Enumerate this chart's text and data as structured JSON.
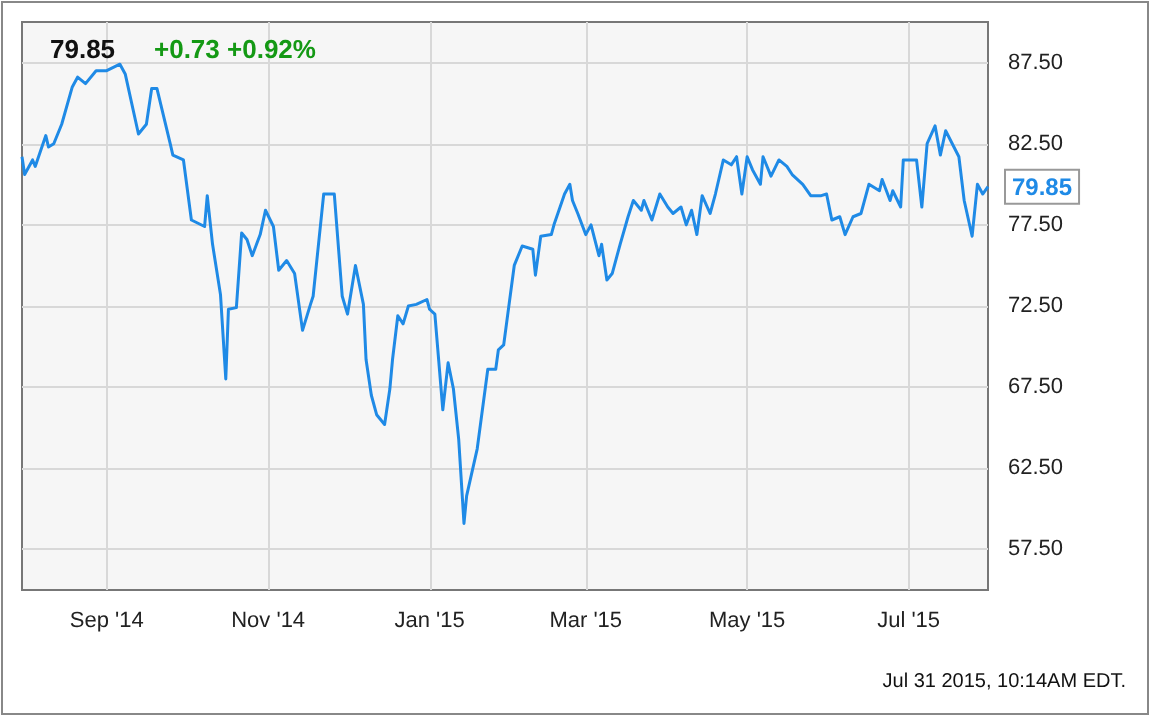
{
  "chart_data": {
    "type": "line",
    "title": "79.85",
    "subtitle": "+0.73 +0.92%",
    "annotations": [
      {
        "text": "79.85",
        "x": "2015-07-31",
        "y": 79.85
      },
      "Jul 31 2015, 10:14AM EDT."
    ],
    "x": [
      "2014-07-31",
      "2014-08-01",
      "2014-08-04",
      "2014-08-05",
      "2014-08-09",
      "2014-08-10",
      "2014-08-12",
      "2014-08-15",
      "2014-08-19",
      "2014-08-21",
      "2014-08-24",
      "2014-08-28",
      "2014-09-01",
      "2014-09-06",
      "2014-09-08",
      "2014-09-13",
      "2014-09-16",
      "2014-09-18",
      "2014-09-20",
      "2014-09-25",
      "2014-09-26",
      "2014-09-30",
      "2014-10-03",
      "2014-10-08",
      "2014-10-09",
      "2014-10-11",
      "2014-10-14",
      "2014-10-16",
      "2014-10-17",
      "2014-10-20",
      "2014-10-22",
      "2014-10-24",
      "2014-10-26",
      "2014-10-29",
      "2014-10-31",
      "2014-11-03",
      "2014-11-05",
      "2014-11-08",
      "2014-11-11",
      "2014-11-14",
      "2014-11-17",
      "2014-11-18",
      "2014-11-22",
      "2014-11-26",
      "2014-11-29",
      "2014-12-01",
      "2014-12-04",
      "2014-12-07",
      "2014-12-08",
      "2014-12-10",
      "2014-12-12",
      "2014-12-15",
      "2014-12-17",
      "2014-12-18",
      "2014-12-20",
      "2014-12-22",
      "2014-12-24",
      "2014-12-27",
      "2014-12-31",
      "2015-01-01",
      "2015-01-03",
      "2015-01-06",
      "2015-01-08",
      "2015-01-10",
      "2015-01-12",
      "2015-01-14",
      "2015-01-15",
      "2015-01-19",
      "2015-01-23",
      "2015-01-26",
      "2015-01-27",
      "2015-01-29",
      "2015-02-02",
      "2015-02-05",
      "2015-02-09",
      "2015-02-10",
      "2015-02-12",
      "2015-02-16",
      "2015-02-17",
      "2015-02-21",
      "2015-02-23",
      "2015-02-24",
      "2015-02-26",
      "2015-03-01",
      "2015-03-03",
      "2015-03-06",
      "2015-03-07",
      "2015-03-09",
      "2015-03-11",
      "2015-03-14",
      "2015-03-17",
      "2015-03-19",
      "2015-03-22",
      "2015-03-23",
      "2015-03-26",
      "2015-03-29",
      "2015-04-01",
      "2015-04-03",
      "2015-04-06",
      "2015-04-08",
      "2015-04-10",
      "2015-04-12",
      "2015-04-14",
      "2015-04-17",
      "2015-04-19",
      "2015-04-22",
      "2015-04-25",
      "2015-04-27",
      "2015-04-29",
      "2015-05-01",
      "2015-05-03",
      "2015-05-06",
      "2015-05-07",
      "2015-05-10",
      "2015-05-13",
      "2015-05-16",
      "2015-05-18",
      "2015-05-22",
      "2015-05-25",
      "2015-05-29",
      "2015-05-31",
      "2015-06-02",
      "2015-06-05",
      "2015-06-07",
      "2015-06-10",
      "2015-06-13",
      "2015-06-16",
      "2015-06-20",
      "2015-06-21",
      "2015-06-24",
      "2015-06-25",
      "2015-06-28",
      "2015-06-29",
      "2015-07-04",
      "2015-07-06",
      "2015-07-08",
      "2015-07-11",
      "2015-07-13",
      "2015-07-15",
      "2015-07-20",
      "2015-07-22",
      "2015-07-25",
      "2015-07-27",
      "2015-07-29",
      "2015-07-31"
    ],
    "series": [
      {
        "color": "#1f8ae6",
        "values": [
          81.7,
          80.6,
          81.5,
          81.1,
          83.0,
          82.3,
          82.5,
          83.7,
          86.0,
          86.6,
          86.2,
          87.0,
          87.0,
          87.4,
          86.8,
          83.1,
          83.7,
          85.9,
          85.9,
          82.5,
          81.8,
          81.5,
          77.8,
          77.4,
          79.3,
          76.3,
          73.2,
          68.0,
          72.3,
          72.4,
          77.0,
          76.6,
          75.6,
          76.9,
          78.4,
          77.4,
          74.7,
          75.3,
          74.5,
          71.0,
          72.6,
          73.1,
          79.4,
          79.4,
          73.1,
          72.0,
          75.0,
          72.6,
          69.2,
          67.0,
          65.8,
          65.2,
          67.4,
          69.2,
          71.9,
          71.4,
          72.5,
          72.6,
          72.9,
          72.3,
          72.0,
          66.1,
          69.0,
          67.4,
          64.3,
          59.1,
          60.8,
          63.7,
          68.6,
          68.6,
          69.8,
          70.1,
          75.0,
          76.2,
          76.0,
          74.4,
          76.8,
          76.9,
          77.5,
          79.4,
          80.0,
          79.0,
          78.2,
          76.9,
          77.5,
          75.6,
          76.3,
          74.1,
          74.5,
          76.3,
          78.0,
          79.0,
          78.4,
          79.0,
          77.8,
          79.4,
          78.6,
          78.2,
          78.6,
          77.5,
          78.4,
          76.9,
          79.3,
          78.2,
          79.4,
          81.5,
          81.2,
          81.7,
          79.4,
          81.7,
          80.9,
          80.0,
          81.7,
          80.5,
          81.5,
          81.1,
          80.6,
          80.0,
          79.3,
          79.3,
          79.4,
          77.8,
          78.0,
          76.9,
          78.0,
          78.2,
          80.0,
          79.6,
          80.3,
          79.0,
          79.6,
          78.6,
          81.5,
          81.5,
          78.6,
          82.5,
          83.6,
          81.8,
          83.3,
          81.7,
          79.0,
          76.8,
          80.0,
          79.4,
          79.85
        ]
      }
    ],
    "xlim": [
      "2014-07-31",
      "2015-07-31"
    ],
    "xticks": [
      {
        "value": "2014-09-01",
        "label": "Sep '14"
      },
      {
        "value": "2014-11-01",
        "label": "Nov '14"
      },
      {
        "value": "2015-01-01",
        "label": "Jan '15"
      },
      {
        "value": "2015-03-01",
        "label": "Mar '15"
      },
      {
        "value": "2015-05-01",
        "label": "May '15"
      },
      {
        "value": "2015-07-01",
        "label": "Jul '15"
      }
    ],
    "ylim": [
      55,
      90
    ],
    "yticks": [
      {
        "value": 57.5,
        "label": "57.50"
      },
      {
        "value": 62.5,
        "label": "62.50"
      },
      {
        "value": 67.5,
        "label": "67.50"
      },
      {
        "value": 72.5,
        "label": "72.50"
      },
      {
        "value": 77.5,
        "label": "77.50"
      },
      {
        "value": 82.5,
        "label": "82.50"
      },
      {
        "value": 87.5,
        "label": "87.50"
      }
    ],
    "grid": true,
    "marker": "none",
    "line_style": "solid"
  }
}
